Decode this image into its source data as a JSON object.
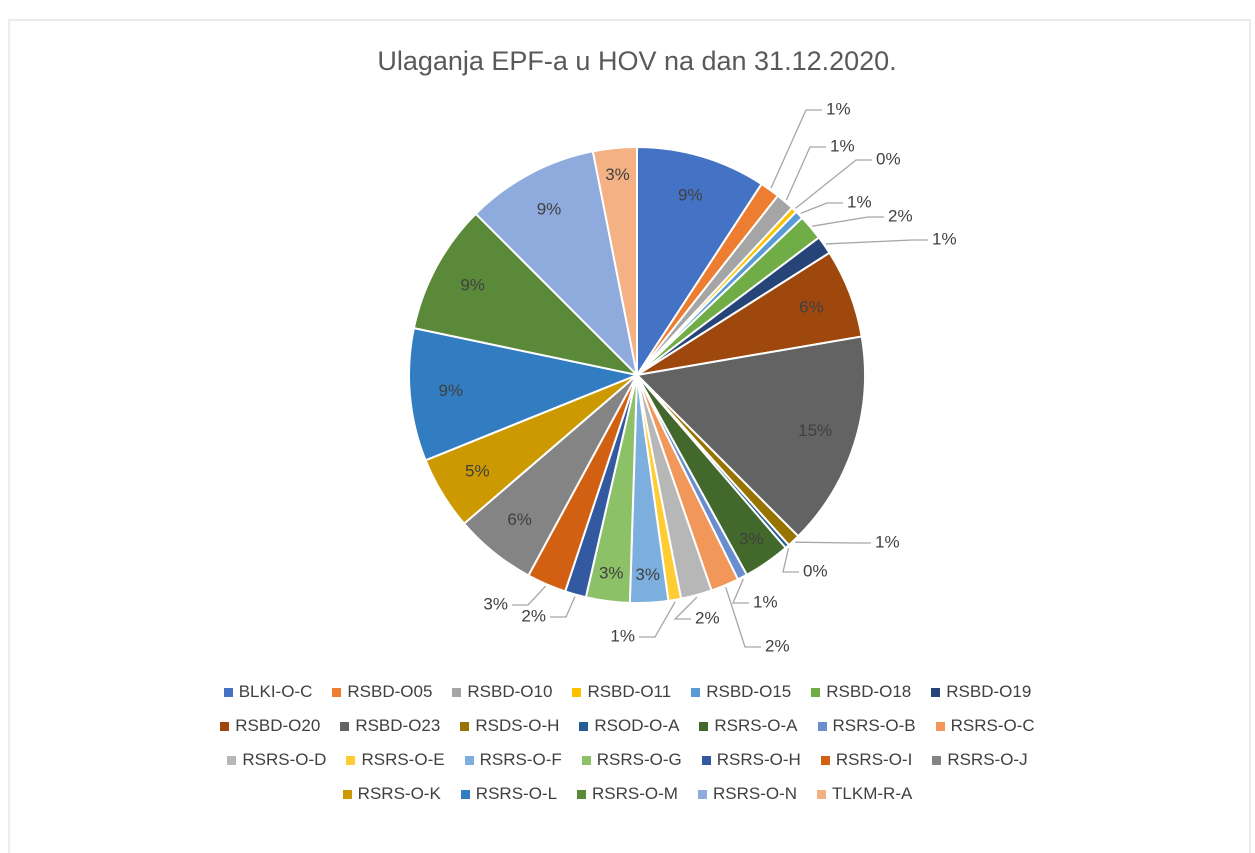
{
  "chart_data": {
    "type": "pie",
    "title": "Ulaganja EPF-a u HOV na dan 31.12.2020.",
    "categories": [
      "BLKI-O-C",
      "RSBD-O05",
      "RSBD-O10",
      "RSBD-O11",
      "RSBD-O15",
      "RSBD-O18",
      "RSBD-O19",
      "RSBD-O20",
      "RSBD-O23",
      "RSDS-O-H",
      "RSOD-O-A",
      "RSRS-O-A",
      "RSRS-O-B",
      "RSRS-O-C",
      "RSRS-O-D",
      "RSRS-O-E",
      "RSRS-O-F",
      "RSRS-O-G",
      "RSRS-O-H",
      "RSRS-O-I",
      "RSRS-O-J",
      "RSRS-O-K",
      "RSRS-O-L",
      "RSRS-O-M",
      "RSRS-O-N",
      "TLKM-R-A"
    ],
    "values": [
      9.2,
      1.4,
      1.3,
      0.4,
      0.6,
      1.8,
      1.3,
      6.3,
      15.2,
      0.9,
      0.3,
      3.3,
      0.7,
      2.0,
      2.2,
      0.9,
      2.7,
      3.1,
      1.5,
      2.8,
      5.8,
      5.2,
      9.4,
      9.2,
      9.4,
      3.1
    ],
    "value_labels": [
      "9%",
      "1%",
      "1%",
      "0%",
      "1%",
      "2%",
      "1%",
      "6%",
      "15%",
      "1%",
      "0%",
      "3%",
      "1%",
      "2%",
      "2%",
      "1%",
      "3%",
      "3%",
      "2%",
      "3%",
      "6%",
      "5%",
      "9%",
      "9%",
      "9%",
      "3%"
    ],
    "colors": [
      "#4472C4",
      "#ED7D31",
      "#A5A5A5",
      "#FFC000",
      "#5B9BD5",
      "#70AD47",
      "#264478",
      "#9E480E",
      "#636363",
      "#997300",
      "#255E91",
      "#43682B",
      "#698ED0",
      "#F1975A",
      "#B7B7B7",
      "#FFCD33",
      "#7CAFDD",
      "#8CC168",
      "#335AA1",
      "#D26012",
      "#848484",
      "#CC9A00",
      "#327DC2",
      "#5A8A39",
      "#8FAADC",
      "#F4B183"
    ],
    "legend": "bottom"
  }
}
